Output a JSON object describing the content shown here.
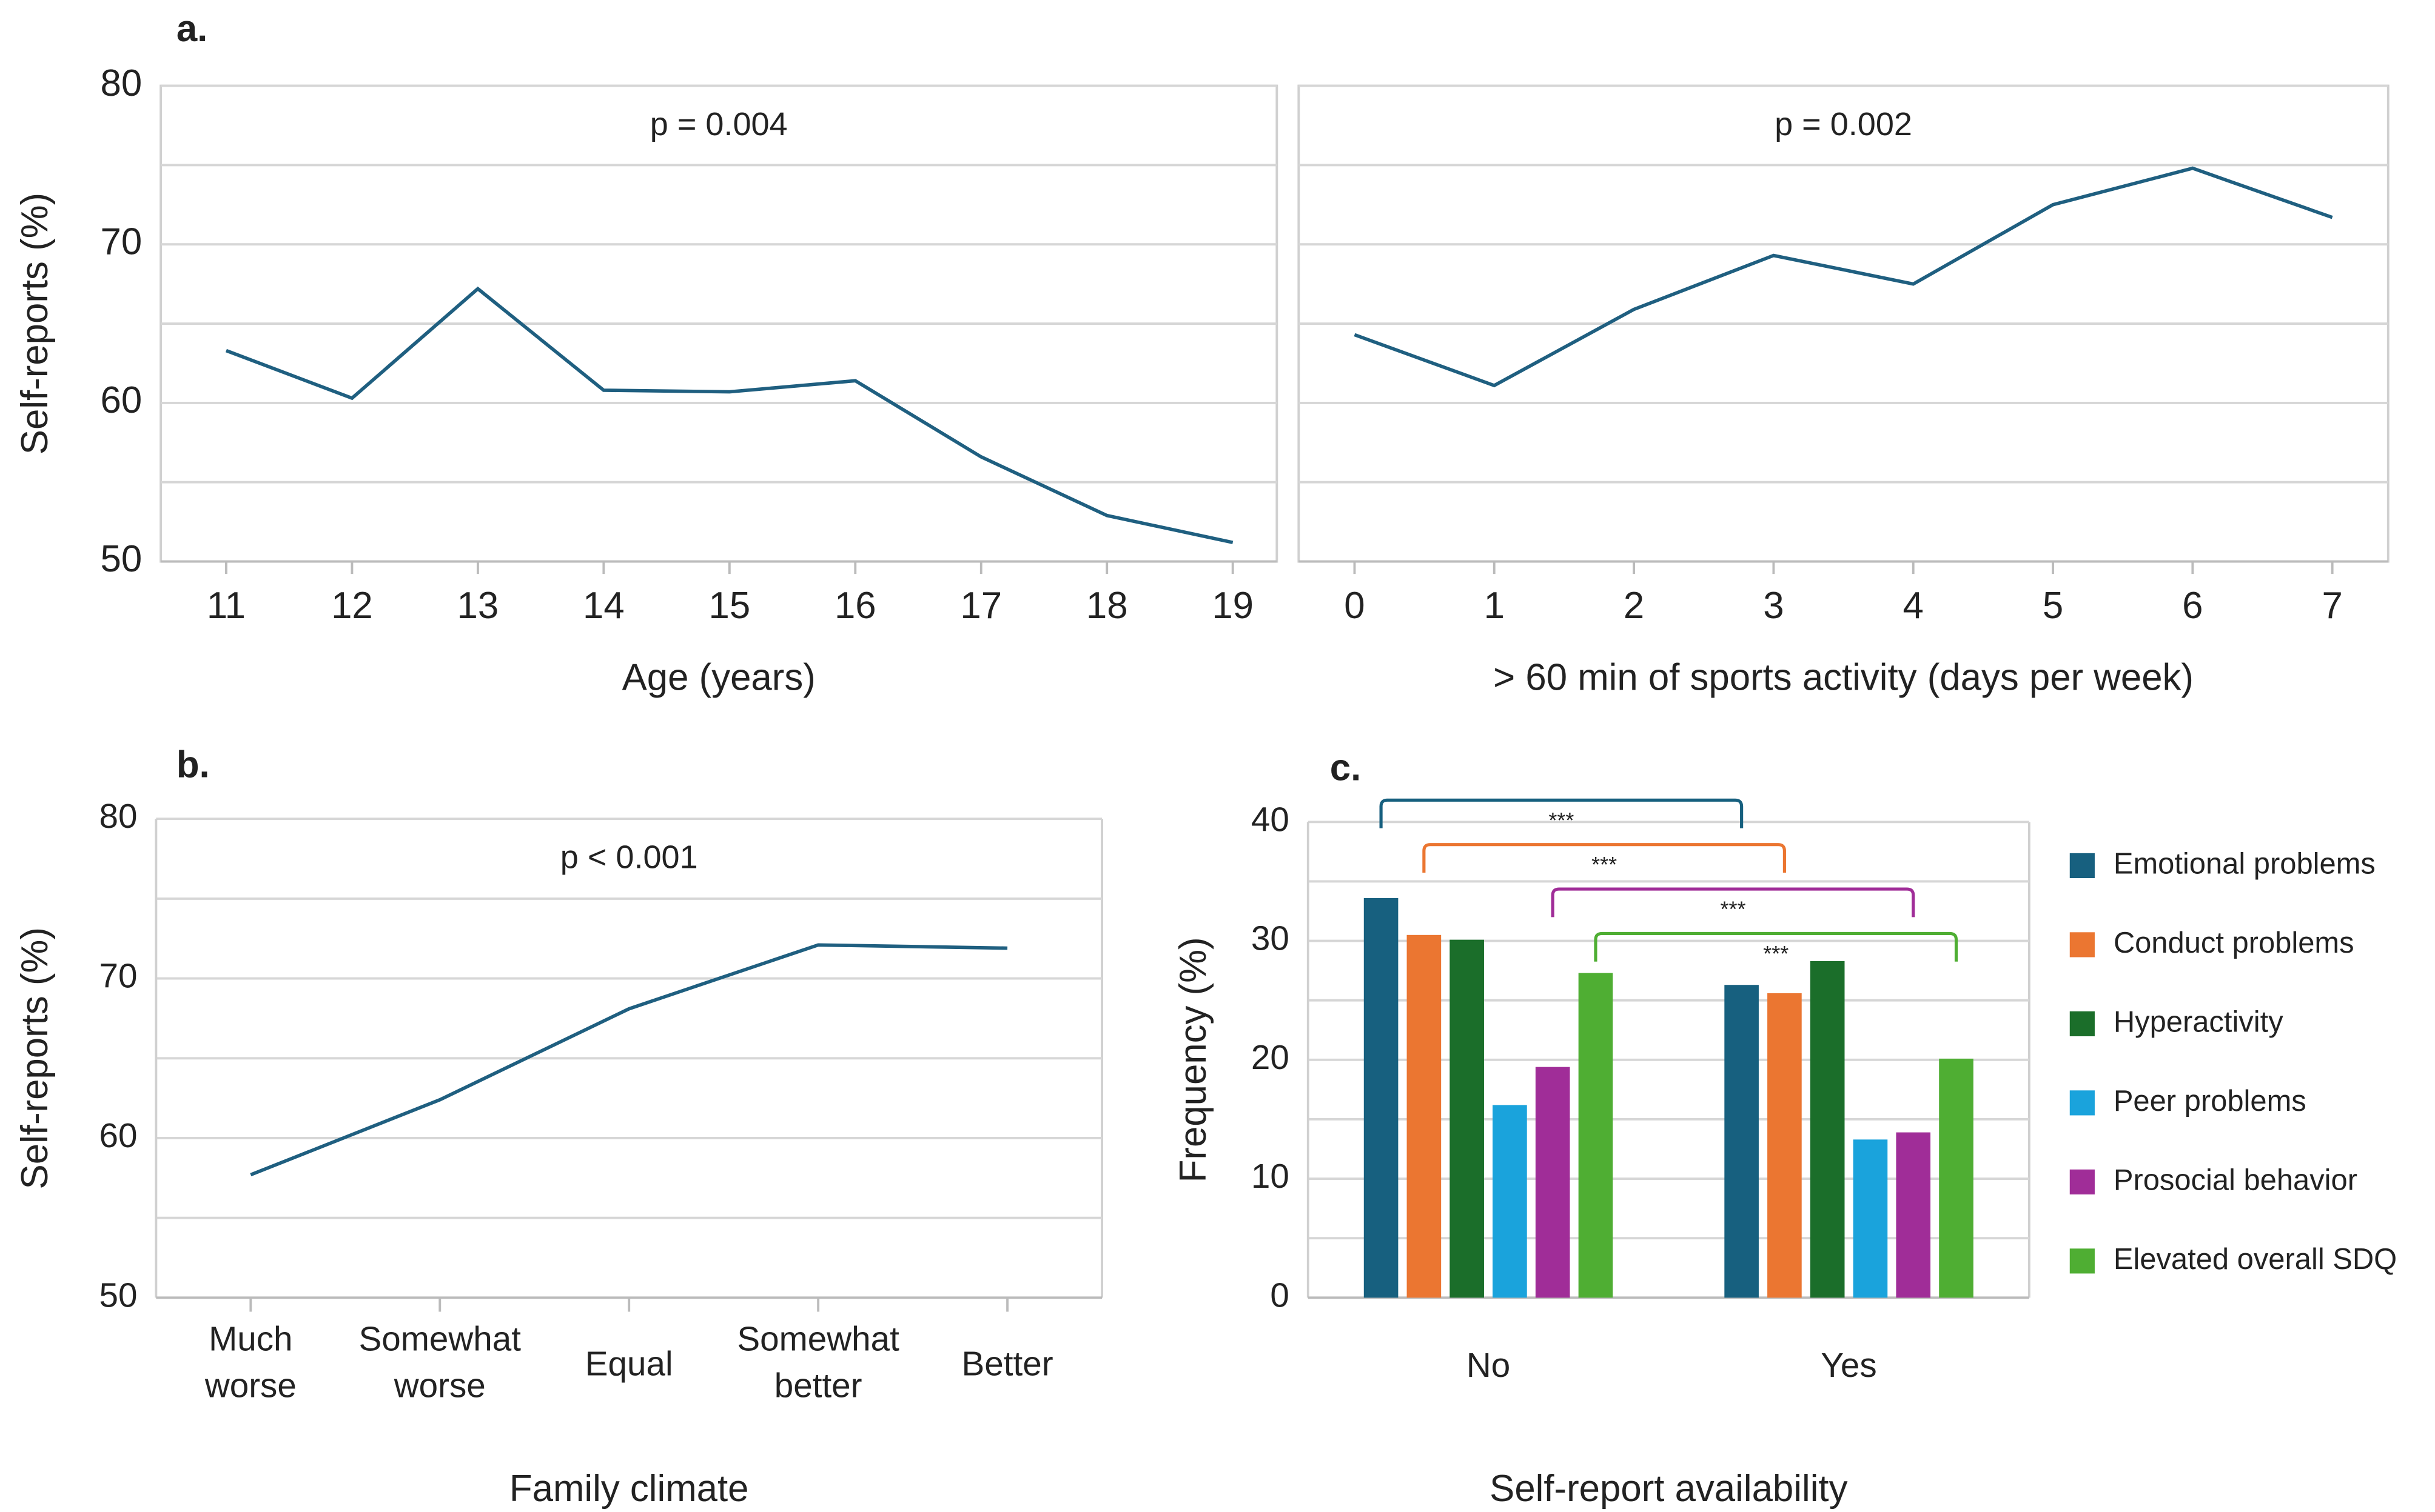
{
  "chart_data": [
    {
      "type": "line",
      "label": "a.",
      "annotation": "p = 0.004",
      "ylabel": "Self-reports (%)",
      "xlabel": "Age (years)",
      "x": [
        11,
        12,
        13,
        14,
        15,
        16,
        17,
        18,
        19
      ],
      "values": [
        63.3,
        60.3,
        67.2,
        60.8,
        60.7,
        61.4,
        56.6,
        52.9,
        51.2
      ],
      "color": "#1f5f80",
      "xlim": [
        10.48,
        19.35
      ],
      "xticks": [
        11,
        12,
        13,
        14,
        15,
        16,
        17,
        18,
        19
      ],
      "ylim": [
        50,
        80
      ],
      "yticks": [
        50,
        60,
        70,
        80
      ],
      "ygrid": [
        55,
        60,
        65,
        70,
        75,
        80
      ]
    },
    {
      "type": "line",
      "annotation": "p = 0.002",
      "xlabel": "> 60 min of sports activity (days per week)",
      "x": [
        0,
        1,
        2,
        3,
        4,
        5,
        6,
        7
      ],
      "values": [
        64.3,
        61.1,
        65.9,
        69.3,
        67.5,
        72.5,
        74.8,
        71.7
      ],
      "color": "#1f5f80",
      "xlim": [
        -0.4,
        7.4
      ],
      "xticks": [
        0,
        1,
        2,
        3,
        4,
        5,
        6,
        7
      ],
      "ylim": [
        50,
        80
      ],
      "ygrid": [
        55,
        60,
        65,
        70,
        75,
        80
      ]
    },
    {
      "type": "line",
      "label": "b.",
      "annotation": "p < 0.001",
      "ylabel": "Self-reports (%)",
      "xlabel": "Family climate",
      "categories": [
        "Much worse",
        "Somewhat worse",
        "Equal",
        "Somewhat better",
        "Better"
      ],
      "values": [
        57.7,
        62.4,
        68.1,
        72.1,
        71.9
      ],
      "color": "#1f5f80",
      "ylim": [
        50,
        80
      ],
      "yticks": [
        50,
        60,
        70,
        80
      ],
      "ygrid": [
        55,
        60,
        65,
        70,
        75,
        80
      ]
    },
    {
      "type": "bar",
      "label": "c.",
      "ylabel": "Frequency (%)",
      "xlabel": "Self-report availability",
      "categories": [
        "No",
        "Yes"
      ],
      "ylim": [
        0,
        40
      ],
      "yticks": [
        0,
        10,
        20,
        30,
        40
      ],
      "ygrid": [
        5,
        10,
        15,
        20,
        25,
        30,
        35,
        40
      ],
      "series": [
        {
          "name": "Emotional problems",
          "color": "#17607f",
          "values": [
            33.6,
            26.3
          ],
          "significance": "***"
        },
        {
          "name": "Conduct problems",
          "color": "#eb7631",
          "values": [
            30.5,
            25.6
          ],
          "significance": "***"
        },
        {
          "name": "Hyperactivity",
          "color": "#1b6e2a",
          "values": [
            30.1,
            28.3
          ]
        },
        {
          "name": "Peer problems",
          "color": "#1aa3dc",
          "values": [
            16.2,
            13.3
          ]
        },
        {
          "name": "Prosocial behavior",
          "color": "#a02d98",
          "values": [
            19.4,
            13.9
          ],
          "significance": "***"
        },
        {
          "name": "Elevated overall SDQ",
          "color": "#4fae33",
          "values": [
            27.3,
            20.1
          ],
          "significance": "***"
        }
      ]
    }
  ]
}
